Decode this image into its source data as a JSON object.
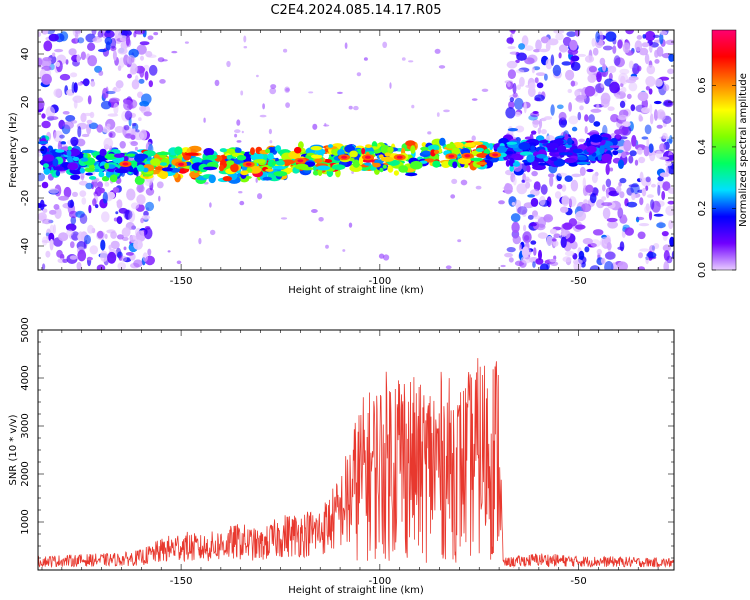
{
  "figure_title": "C2E4.2024.085.14.17.R05",
  "chart_data": [
    {
      "type": "heatmap",
      "title": "",
      "xlabel": "Height of straight line (km)",
      "ylabel": "Frequency (Hz)",
      "xlim": [
        -186,
        -26
      ],
      "ylim": [
        -50,
        50
      ],
      "xticks": [
        -150,
        -100,
        -50
      ],
      "yticks": [
        -40,
        -20,
        0,
        20,
        40
      ],
      "colorbar": {
        "label": "Normalized spectral amplitude",
        "range": [
          0,
          0.78
        ],
        "ticks": [
          "0.0",
          "0.2",
          "0.4",
          "0.6"
        ],
        "tick_values": [
          0.0,
          0.2,
          0.4,
          0.6
        ],
        "colormap": [
          "#e8ccff",
          "#7000ff",
          "#0000ff",
          "#00e0ff",
          "#00ff60",
          "#80ff00",
          "#ffff00",
          "#ff8000",
          "#ff0000",
          "#ff0070"
        ]
      },
      "signal_band": [
        {
          "x": -184,
          "freq": -5
        },
        {
          "x": -160,
          "freq": -6
        },
        {
          "x": -130,
          "freq": -6
        },
        {
          "x": -110,
          "freq": -3
        },
        {
          "x": -90,
          "freq": -3
        },
        {
          "x": -70,
          "freq": -2
        },
        {
          "x": -58,
          "freq": -1
        },
        {
          "x": -43,
          "freq": 1
        }
      ],
      "noise_regions": [
        {
          "x_from": -186,
          "x_to": -157,
          "level": "medium"
        },
        {
          "x_from": -68,
          "x_to": -26,
          "level": "high"
        }
      ]
    },
    {
      "type": "line",
      "title": "",
      "xlabel": "Height of straight line (km)",
      "ylabel": "SNR (10 * v/v)",
      "xlim": [
        -186,
        -26
      ],
      "ylim": [
        0,
        5000
      ],
      "xticks": [
        -150,
        -100,
        -50
      ],
      "yticks": [
        1000,
        2000,
        3000,
        4000,
        5000
      ],
      "color": "#e8382e",
      "series": [
        {
          "x": [
            -186,
            -175,
            -165,
            -160,
            -155,
            -150,
            -145,
            -140,
            -135,
            -130,
            -125,
            -120,
            -115,
            -110,
            -105,
            -100,
            -95,
            -90,
            -85,
            -80,
            -75,
            -70,
            -69,
            -65,
            -60,
            -55,
            -50,
            -40,
            -26
          ],
          "values": [
            180,
            200,
            220,
            260,
            400,
            500,
            450,
            520,
            600,
            500,
            700,
            750,
            800,
            1200,
            2200,
            2500,
            2800,
            2400,
            2600,
            2400,
            2800,
            2900,
            150,
            180,
            220,
            200,
            180,
            170,
            150
          ]
        }
      ]
    }
  ]
}
